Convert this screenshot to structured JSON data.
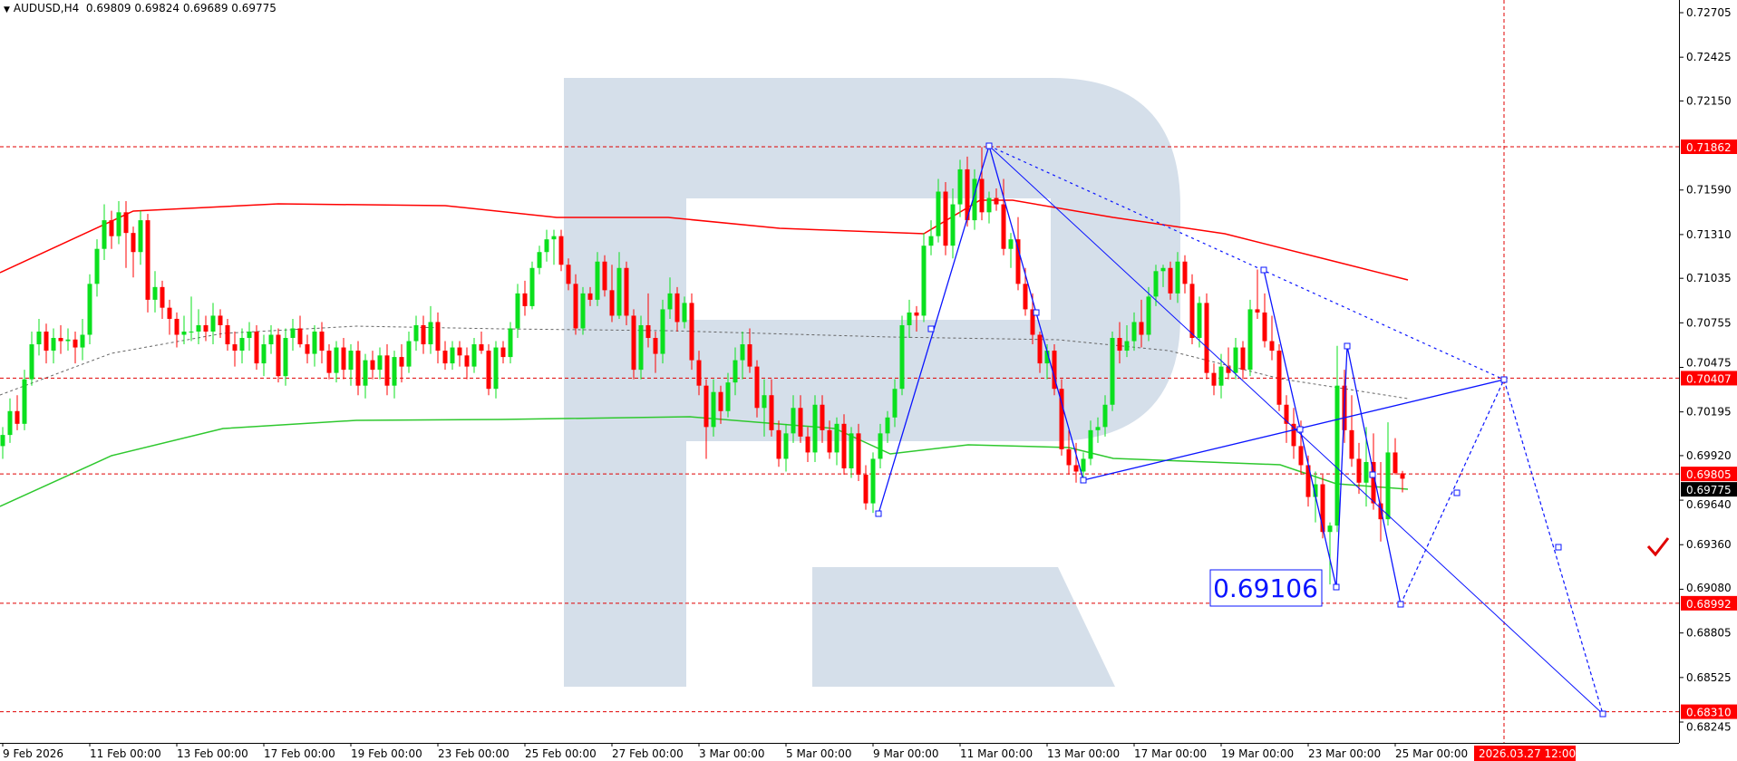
{
  "header": {
    "symbol_timeframe": "AUDUSD,H4",
    "open": "0.69809",
    "high": "0.69824",
    "low": "0.69689",
    "close": "0.69775"
  },
  "chart_data": {
    "type": "candlestick",
    "title": "AUDUSD,H4",
    "ylim": [
      0.68245,
      0.72705
    ],
    "grid": false,
    "colors": {
      "bull": "#0be01e",
      "bear": "#ff0000",
      "level": "#e00000",
      "wave": "#0a14ff",
      "ma_slow": "#ff0000",
      "ma_fast": "#2ec82e",
      "ma_mid": "#666666",
      "watermark": "#d5dfea"
    },
    "y_ticks": [
      "0.72705",
      "0.72425",
      "0.72150",
      "0.71590",
      "0.71310",
      "0.71035",
      "0.70755",
      "0.70475",
      "0.70195",
      "0.69920",
      "0.69640",
      "0.69360",
      "0.69080",
      "0.68805",
      "0.68525",
      "0.68245"
    ],
    "x_labels": [
      "9 Feb 2026",
      "11 Feb 00:00",
      "13 Feb 00:00",
      "17 Feb 00:00",
      "19 Feb 00:00",
      "23 Feb 00:00",
      "25 Feb 00:00",
      "27 Feb 00:00",
      "3 Mar 00:00",
      "5 Mar 00:00",
      "9 Mar 00:00",
      "11 Mar 00:00",
      "13 Mar 00:00",
      "17 Mar 00:00",
      "19 Mar 00:00",
      "23 Mar 00:00",
      "25 Mar 00:00"
    ],
    "forecast_time_label": "2026.03.27 12:00",
    "levels": [
      "0.71862",
      "0.70407",
      "0.69805",
      "0.68992",
      "0.68310"
    ],
    "current_price": "0.69775",
    "target_label": "0.69106",
    "candles": [
      [
        0.6998,
        0.701,
        0.699,
        0.7005
      ],
      [
        0.7005,
        0.7028,
        0.7,
        0.702
      ],
      [
        0.702,
        0.703,
        0.7008,
        0.7012
      ],
      [
        0.7012,
        0.7046,
        0.7008,
        0.704
      ],
      [
        0.704,
        0.707,
        0.7036,
        0.7062
      ],
      [
        0.7062,
        0.7078,
        0.7055,
        0.707
      ],
      [
        0.707,
        0.7075,
        0.705,
        0.7058
      ],
      [
        0.7058,
        0.7072,
        0.705,
        0.7066
      ],
      [
        0.7066,
        0.7074,
        0.7056,
        0.7064
      ],
      [
        0.7064,
        0.7072,
        0.7058,
        0.7065
      ],
      [
        0.7065,
        0.707,
        0.705,
        0.706
      ],
      [
        0.706,
        0.7078,
        0.7052,
        0.7068
      ],
      [
        0.7068,
        0.7106,
        0.7062,
        0.71
      ],
      [
        0.71,
        0.7128,
        0.7092,
        0.7122
      ],
      [
        0.7122,
        0.715,
        0.7115,
        0.714
      ],
      [
        0.714,
        0.7146,
        0.7122,
        0.713
      ],
      [
        0.713,
        0.7152,
        0.7125,
        0.7145
      ],
      [
        0.7145,
        0.7152,
        0.711,
        0.7132
      ],
      [
        0.7132,
        0.7136,
        0.7104,
        0.712
      ],
      [
        0.712,
        0.7146,
        0.7112,
        0.714
      ],
      [
        0.714,
        0.7144,
        0.7082,
        0.709
      ],
      [
        0.709,
        0.7108,
        0.7082,
        0.7098
      ],
      [
        0.7098,
        0.7102,
        0.7078,
        0.7085
      ],
      [
        0.7085,
        0.709,
        0.7068,
        0.7078
      ],
      [
        0.7078,
        0.7082,
        0.706,
        0.7068
      ],
      [
        0.7068,
        0.708,
        0.7062,
        0.707
      ],
      [
        0.707,
        0.7092,
        0.7064,
        0.707
      ],
      [
        0.707,
        0.7084,
        0.7062,
        0.7074
      ],
      [
        0.7074,
        0.708,
        0.7064,
        0.707
      ],
      [
        0.707,
        0.7088,
        0.7062,
        0.708
      ],
      [
        0.708,
        0.7084,
        0.7066,
        0.7074
      ],
      [
        0.7074,
        0.7078,
        0.7058,
        0.7062
      ],
      [
        0.7062,
        0.707,
        0.7048,
        0.7058
      ],
      [
        0.7058,
        0.7072,
        0.705,
        0.7066
      ],
      [
        0.7066,
        0.7076,
        0.7058,
        0.707
      ],
      [
        0.707,
        0.7074,
        0.7046,
        0.705
      ],
      [
        0.705,
        0.7068,
        0.7042,
        0.7062
      ],
      [
        0.7062,
        0.7074,
        0.7056,
        0.7068
      ],
      [
        0.7068,
        0.7072,
        0.7038,
        0.7042
      ],
      [
        0.7042,
        0.7072,
        0.7036,
        0.7066
      ],
      [
        0.7066,
        0.7078,
        0.7058,
        0.7072
      ],
      [
        0.7072,
        0.708,
        0.706,
        0.7062
      ],
      [
        0.7062,
        0.7068,
        0.705,
        0.7056
      ],
      [
        0.7056,
        0.7074,
        0.7048,
        0.707
      ],
      [
        0.707,
        0.7076,
        0.705,
        0.7058
      ],
      [
        0.7058,
        0.7062,
        0.704,
        0.7044
      ],
      [
        0.7044,
        0.7064,
        0.7038,
        0.706
      ],
      [
        0.706,
        0.7066,
        0.704,
        0.7046
      ],
      [
        0.7046,
        0.7062,
        0.7036,
        0.7058
      ],
      [
        0.7058,
        0.7064,
        0.703,
        0.7036
      ],
      [
        0.7036,
        0.7056,
        0.7028,
        0.7052
      ],
      [
        0.7052,
        0.7058,
        0.704,
        0.7046
      ],
      [
        0.7046,
        0.706,
        0.704,
        0.7055
      ],
      [
        0.7055,
        0.7062,
        0.703,
        0.7036
      ],
      [
        0.7036,
        0.7058,
        0.7028,
        0.7054
      ],
      [
        0.7054,
        0.7062,
        0.7038,
        0.7048
      ],
      [
        0.7048,
        0.707,
        0.7044,
        0.7064
      ],
      [
        0.7064,
        0.708,
        0.7058,
        0.7074
      ],
      [
        0.7074,
        0.708,
        0.7056,
        0.7062
      ],
      [
        0.7062,
        0.7086,
        0.7056,
        0.7076
      ],
      [
        0.7076,
        0.7082,
        0.705,
        0.7058
      ],
      [
        0.7058,
        0.7064,
        0.7046,
        0.705
      ],
      [
        0.705,
        0.7064,
        0.7046,
        0.706
      ],
      [
        0.706,
        0.7064,
        0.7048,
        0.7055
      ],
      [
        0.7055,
        0.706,
        0.704,
        0.7048
      ],
      [
        0.7048,
        0.7066,
        0.7044,
        0.7062
      ],
      [
        0.7062,
        0.707,
        0.7056,
        0.7058
      ],
      [
        0.7058,
        0.7062,
        0.703,
        0.7034
      ],
      [
        0.7034,
        0.7064,
        0.7028,
        0.706
      ],
      [
        0.706,
        0.7064,
        0.705,
        0.7054
      ],
      [
        0.7054,
        0.7076,
        0.705,
        0.7072
      ],
      [
        0.7072,
        0.71,
        0.7066,
        0.7094
      ],
      [
        0.7094,
        0.7102,
        0.708,
        0.7086
      ],
      [
        0.7086,
        0.7114,
        0.7084,
        0.711
      ],
      [
        0.711,
        0.7124,
        0.7106,
        0.712
      ],
      [
        0.712,
        0.7134,
        0.7114,
        0.7128
      ],
      [
        0.7128,
        0.7134,
        0.7112,
        0.713
      ],
      [
        0.713,
        0.7134,
        0.7108,
        0.7112
      ],
      [
        0.7112,
        0.7116,
        0.7096,
        0.71
      ],
      [
        0.71,
        0.7106,
        0.7068,
        0.7072
      ],
      [
        0.7072,
        0.7098,
        0.7068,
        0.7094
      ],
      [
        0.7094,
        0.7098,
        0.7086,
        0.709
      ],
      [
        0.709,
        0.712,
        0.7086,
        0.7114
      ],
      [
        0.7114,
        0.7118,
        0.7092,
        0.7096
      ],
      [
        0.7096,
        0.7112,
        0.7076,
        0.708
      ],
      [
        0.708,
        0.712,
        0.7078,
        0.711
      ],
      [
        0.711,
        0.7114,
        0.7074,
        0.708
      ],
      [
        0.708,
        0.7084,
        0.704,
        0.7046
      ],
      [
        0.7046,
        0.708,
        0.704,
        0.7074
      ],
      [
        0.7074,
        0.7094,
        0.706,
        0.7066
      ],
      [
        0.7066,
        0.707,
        0.7044,
        0.7056
      ],
      [
        0.7056,
        0.709,
        0.705,
        0.7084
      ],
      [
        0.7084,
        0.7104,
        0.7078,
        0.7094
      ],
      [
        0.7094,
        0.7098,
        0.707,
        0.7076
      ],
      [
        0.7076,
        0.7092,
        0.7072,
        0.7088
      ],
      [
        0.7088,
        0.7094,
        0.7046,
        0.7052
      ],
      [
        0.7052,
        0.7058,
        0.703,
        0.7036
      ],
      [
        0.7036,
        0.704,
        0.699,
        0.701
      ],
      [
        0.701,
        0.704,
        0.7004,
        0.7032
      ],
      [
        0.7032,
        0.7036,
        0.7012,
        0.702
      ],
      [
        0.702,
        0.7044,
        0.7016,
        0.7038
      ],
      [
        0.7038,
        0.706,
        0.703,
        0.7052
      ],
      [
        0.7052,
        0.707,
        0.704,
        0.7062
      ],
      [
        0.7062,
        0.7072,
        0.7044,
        0.7048
      ],
      [
        0.7048,
        0.7052,
        0.7016,
        0.7022
      ],
      [
        0.7022,
        0.704,
        0.7004,
        0.703
      ],
      [
        0.703,
        0.704,
        0.7004,
        0.7008
      ],
      [
        0.7008,
        0.7014,
        0.6985,
        0.699
      ],
      [
        0.699,
        0.7012,
        0.6982,
        0.7006
      ],
      [
        0.7006,
        0.703,
        0.7,
        0.7022
      ],
      [
        0.7022,
        0.703,
        0.7,
        0.7004
      ],
      [
        0.7004,
        0.701,
        0.6988,
        0.6994
      ],
      [
        0.6994,
        0.703,
        0.6988,
        0.7024
      ],
      [
        0.7024,
        0.703,
        0.7,
        0.7008
      ],
      [
        0.7008,
        0.7014,
        0.699,
        0.6994
      ],
      [
        0.6994,
        0.7016,
        0.6986,
        0.7012
      ],
      [
        0.7012,
        0.7018,
        0.698,
        0.6984
      ],
      [
        0.6984,
        0.701,
        0.6978,
        0.7006
      ],
      [
        0.7006,
        0.7012,
        0.6976,
        0.698
      ],
      [
        0.698,
        0.6986,
        0.6958,
        0.6962
      ],
      [
        0.6962,
        0.6994,
        0.6956,
        0.699
      ],
      [
        0.699,
        0.7012,
        0.6984,
        0.7006
      ],
      [
        0.7006,
        0.702,
        0.7,
        0.7016
      ],
      [
        0.7016,
        0.704,
        0.701,
        0.7034
      ],
      [
        0.7034,
        0.708,
        0.703,
        0.7074
      ],
      [
        0.7074,
        0.709,
        0.7066,
        0.7082
      ],
      [
        0.7082,
        0.7086,
        0.707,
        0.708
      ],
      [
        0.708,
        0.7132,
        0.7076,
        0.7124
      ],
      [
        0.7124,
        0.714,
        0.7118,
        0.713
      ],
      [
        0.713,
        0.7166,
        0.7126,
        0.7158
      ],
      [
        0.7158,
        0.7164,
        0.7118,
        0.7124
      ],
      [
        0.7124,
        0.716,
        0.7116,
        0.715
      ],
      [
        0.715,
        0.7178,
        0.7142,
        0.7172
      ],
      [
        0.7172,
        0.718,
        0.7136,
        0.714
      ],
      [
        0.714,
        0.7172,
        0.7134,
        0.7166
      ],
      [
        0.7166,
        0.7186,
        0.714,
        0.7145
      ],
      [
        0.7145,
        0.7158,
        0.7138,
        0.7154
      ],
      [
        0.7154,
        0.716,
        0.7146,
        0.715
      ],
      [
        0.715,
        0.7166,
        0.7118,
        0.7122
      ],
      [
        0.7122,
        0.7132,
        0.711,
        0.7128
      ],
      [
        0.7128,
        0.7142,
        0.7096,
        0.71
      ],
      [
        0.71,
        0.711,
        0.708,
        0.7084
      ],
      [
        0.7084,
        0.7094,
        0.7062,
        0.7068
      ],
      [
        0.7068,
        0.707,
        0.7044,
        0.705
      ],
      [
        0.705,
        0.7062,
        0.704,
        0.7058
      ],
      [
        0.7058,
        0.7062,
        0.703,
        0.7034
      ],
      [
        0.7034,
        0.704,
        0.6992,
        0.6996
      ],
      [
        0.6996,
        0.7008,
        0.698,
        0.6986
      ],
      [
        0.6986,
        0.7,
        0.6975,
        0.6982
      ],
      [
        0.6982,
        0.6994,
        0.6977,
        0.699
      ],
      [
        0.699,
        0.7014,
        0.6986,
        0.7008
      ],
      [
        0.7008,
        0.7016,
        0.7,
        0.701
      ],
      [
        0.701,
        0.703,
        0.7004,
        0.7024
      ],
      [
        0.7024,
        0.707,
        0.702,
        0.7066
      ],
      [
        0.7066,
        0.7076,
        0.705,
        0.7058
      ],
      [
        0.7058,
        0.7074,
        0.7054,
        0.7064
      ],
      [
        0.7064,
        0.7082,
        0.7058,
        0.7076
      ],
      [
        0.7076,
        0.709,
        0.706,
        0.7068
      ],
      [
        0.7068,
        0.7098,
        0.7064,
        0.7092
      ],
      [
        0.7092,
        0.7112,
        0.7086,
        0.7108
      ],
      [
        0.7108,
        0.7112,
        0.7098,
        0.711
      ],
      [
        0.711,
        0.7114,
        0.709,
        0.7094
      ],
      [
        0.7094,
        0.712,
        0.7088,
        0.7114
      ],
      [
        0.7114,
        0.7118,
        0.7094,
        0.71
      ],
      [
        0.71,
        0.7106,
        0.7062,
        0.7066
      ],
      [
        0.7066,
        0.7092,
        0.706,
        0.7088
      ],
      [
        0.7088,
        0.7094,
        0.704,
        0.7044
      ],
      [
        0.7044,
        0.705,
        0.703,
        0.7036
      ],
      [
        0.7036,
        0.7056,
        0.7028,
        0.7048
      ],
      [
        0.7048,
        0.706,
        0.704,
        0.7044
      ],
      [
        0.7044,
        0.7066,
        0.704,
        0.706
      ],
      [
        0.706,
        0.7064,
        0.704,
        0.7046
      ],
      [
        0.7046,
        0.709,
        0.7042,
        0.7084
      ],
      [
        0.7084,
        0.7109,
        0.7078,
        0.7082
      ],
      [
        0.7082,
        0.7094,
        0.706,
        0.7064
      ],
      [
        0.7064,
        0.708,
        0.7052,
        0.7058
      ],
      [
        0.7058,
        0.7062,
        0.702,
        0.7024
      ],
      [
        0.7024,
        0.703,
        0.7,
        0.7012
      ],
      [
        0.7012,
        0.7022,
        0.699,
        0.6998
      ],
      [
        0.6998,
        0.7014,
        0.698,
        0.6986
      ],
      [
        0.6986,
        0.6992,
        0.696,
        0.6966
      ],
      [
        0.6966,
        0.6982,
        0.695,
        0.6974
      ],
      [
        0.6974,
        0.698,
        0.694,
        0.6944
      ],
      [
        0.6944,
        0.695,
        0.6911,
        0.6948
      ],
      [
        0.6948,
        0.7061,
        0.6944,
        0.7036
      ],
      [
        0.7036,
        0.7046,
        0.7,
        0.7008
      ],
      [
        0.7008,
        0.703,
        0.6985,
        0.699
      ],
      [
        0.699,
        0.7,
        0.6968,
        0.6975
      ],
      [
        0.6975,
        0.701,
        0.696,
        0.6988
      ],
      [
        0.6988,
        0.7006,
        0.6958,
        0.6962
      ],
      [
        0.6962,
        0.6988,
        0.6938,
        0.6952
      ],
      [
        0.6952,
        0.7013,
        0.6948,
        0.6994
      ],
      [
        0.6994,
        0.7003,
        0.698,
        0.6981
      ],
      [
        0.69809,
        0.69824,
        0.69689,
        0.69775
      ]
    ]
  }
}
